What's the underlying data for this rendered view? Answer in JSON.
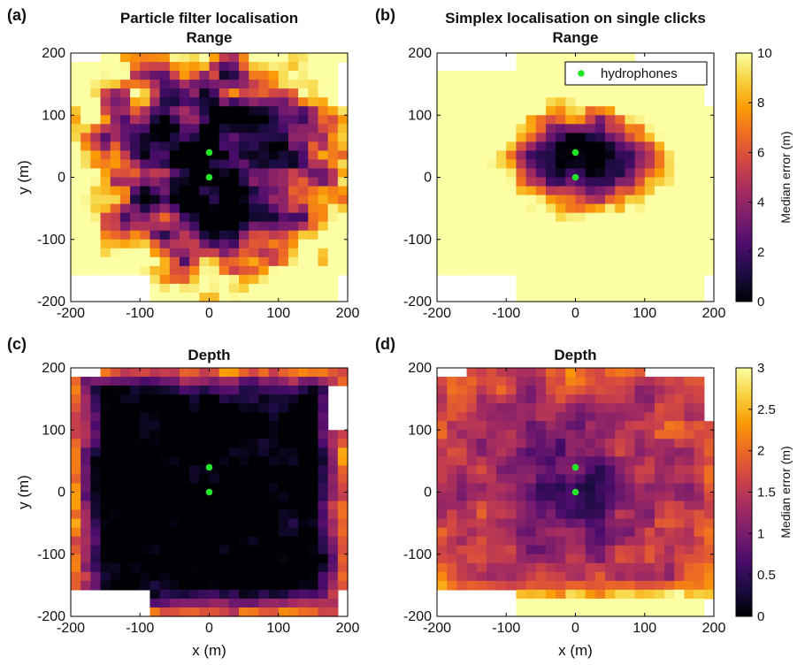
{
  "colormap": {
    "name": "inferno",
    "stops": [
      "#000004",
      "#1b0c41",
      "#4a0c6b",
      "#781c6d",
      "#a52c60",
      "#cf4446",
      "#ed6925",
      "#fb9b06",
      "#f7d13d",
      "#fcffa4"
    ]
  },
  "marker_color": "#22e52a",
  "chart_data": [
    {
      "type": "heatmap",
      "panel_label": "(a)",
      "title": "Particle filter localisation",
      "subtitle": "Range",
      "xlim": [
        -200,
        200
      ],
      "ylim": [
        -200,
        200
      ],
      "xticks": [
        -200,
        -100,
        0,
        100,
        200
      ],
      "yticks": [
        -200,
        -100,
        0,
        100,
        200
      ],
      "xlabel": "",
      "ylabel": "y (m)",
      "clim": [
        0,
        10
      ],
      "hydrophones": [
        {
          "x": 0,
          "y": 40
        },
        {
          "x": 0,
          "y": 0
        }
      ]
    },
    {
      "type": "heatmap",
      "panel_label": "(b)",
      "title": "Simplex localisation on single clicks",
      "subtitle": "Range",
      "xlim": [
        -200,
        200
      ],
      "ylim": [
        -200,
        200
      ],
      "xticks": [
        -200,
        -100,
        0,
        100,
        200
      ],
      "yticks": [
        -200,
        -100,
        0,
        100,
        200
      ],
      "xlabel": "",
      "ylabel": "",
      "clim": [
        0,
        10
      ],
      "legend": {
        "label": "hydrophones",
        "position": "top-right"
      },
      "colorbar": {
        "label": "Median error (m)",
        "ticks": [
          0,
          2,
          4,
          6,
          8,
          10
        ]
      },
      "hydrophones": [
        {
          "x": 0,
          "y": 40
        },
        {
          "x": 0,
          "y": 0
        }
      ]
    },
    {
      "type": "heatmap",
      "panel_label": "(c)",
      "title": "Depth",
      "subtitle": "",
      "xlim": [
        -200,
        200
      ],
      "ylim": [
        -200,
        200
      ],
      "xticks": [
        -200,
        -100,
        0,
        100,
        200
      ],
      "yticks": [
        -200,
        -100,
        0,
        100,
        200
      ],
      "xlabel": "x (m)",
      "ylabel": "y (m)",
      "clim": [
        0,
        3
      ],
      "hydrophones": [
        {
          "x": 0,
          "y": 40
        },
        {
          "x": 0,
          "y": 0
        }
      ]
    },
    {
      "type": "heatmap",
      "panel_label": "(d)",
      "title": "Depth",
      "subtitle": "",
      "xlim": [
        -200,
        200
      ],
      "ylim": [
        -200,
        200
      ],
      "xticks": [
        -200,
        -100,
        0,
        100,
        200
      ],
      "yticks": [
        -200,
        -100,
        0,
        100,
        200
      ],
      "xlabel": "x (m)",
      "ylabel": "",
      "clim": [
        0,
        3
      ],
      "colorbar": {
        "label": "Median error (m)",
        "ticks": [
          0,
          0.5,
          1,
          1.5,
          2,
          2.5,
          3
        ]
      },
      "hydrophones": [
        {
          "x": 0,
          "y": 40
        },
        {
          "x": 0,
          "y": 0
        }
      ]
    }
  ]
}
